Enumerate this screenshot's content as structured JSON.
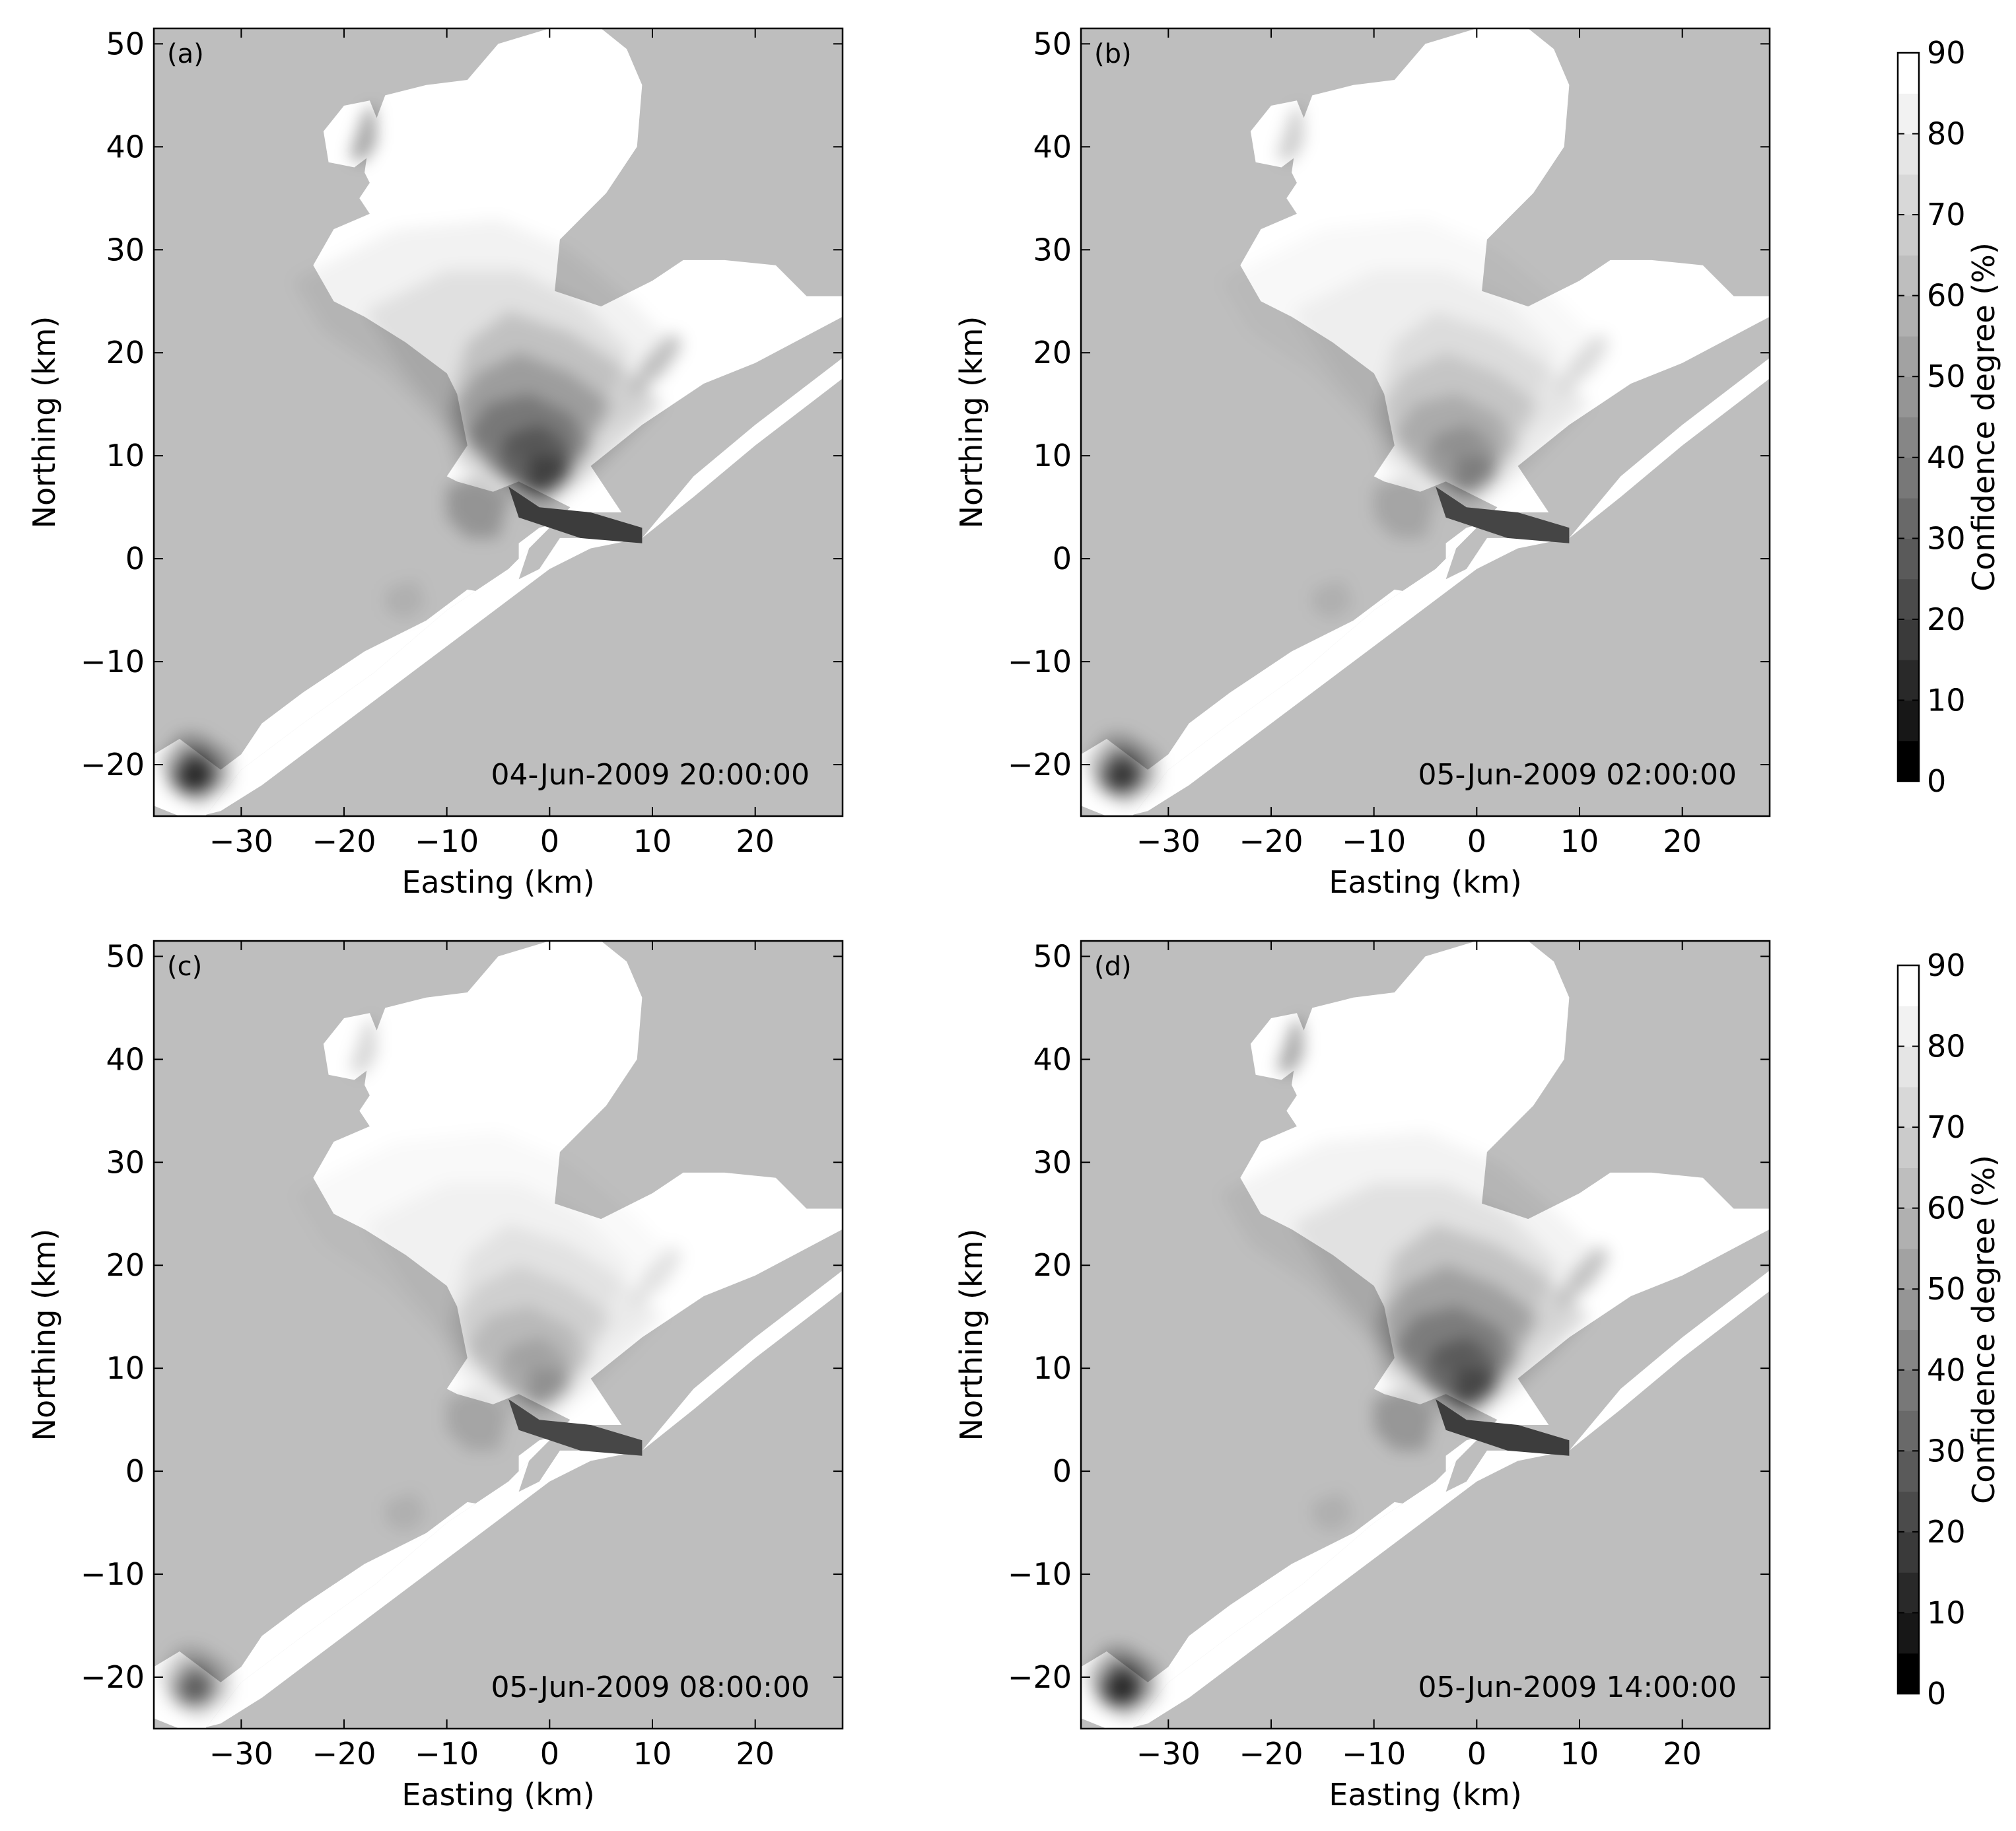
{
  "figure": {
    "panels": [
      {
        "label": "(a)",
        "timestamp": "04-Jun-2009 20:00:00",
        "intensity": 1.0,
        "south_intensity": 0.95
      },
      {
        "label": "(b)",
        "timestamp": "05-Jun-2009 02:00:00",
        "intensity": 0.55,
        "south_intensity": 0.85
      },
      {
        "label": "(c)",
        "timestamp": "05-Jun-2009 08:00:00",
        "intensity": 0.45,
        "south_intensity": 0.6
      },
      {
        "label": "(d)",
        "timestamp": "05-Jun-2009 14:00:00",
        "intensity": 0.95,
        "south_intensity": 0.95
      }
    ],
    "xlabel": "Easting (km)",
    "ylabel": "Northing (km)",
    "x_range": [
      -38.5,
      28.5
    ],
    "y_range": [
      -25,
      51.5
    ],
    "x_ticks": [
      -30,
      -20,
      -10,
      0,
      10,
      20
    ],
    "x_tick_labels": [
      "−30",
      "−20",
      "−10",
      "0",
      "10",
      "20"
    ],
    "y_ticks": [
      50,
      40,
      30,
      20,
      10,
      0,
      -10,
      -20
    ],
    "y_tick_labels": [
      "50",
      "40",
      "30",
      "20",
      "10",
      "0",
      "−10",
      "−20"
    ],
    "colorbar": {
      "label": "Confidence degree (%)",
      "ticks": [
        0,
        10,
        20,
        30,
        40,
        50,
        60,
        70,
        80,
        90
      ],
      "tick_labels": [
        "0",
        "10",
        "20",
        "30",
        "40",
        "50",
        "60",
        "70",
        "80",
        "90"
      ],
      "range": [
        0,
        90
      ],
      "levels": 18
    },
    "colors": {
      "land": "#bebebe",
      "water_high_confidence": "#ffffff",
      "water_low_confidence": "#1a1a1a"
    }
  }
}
